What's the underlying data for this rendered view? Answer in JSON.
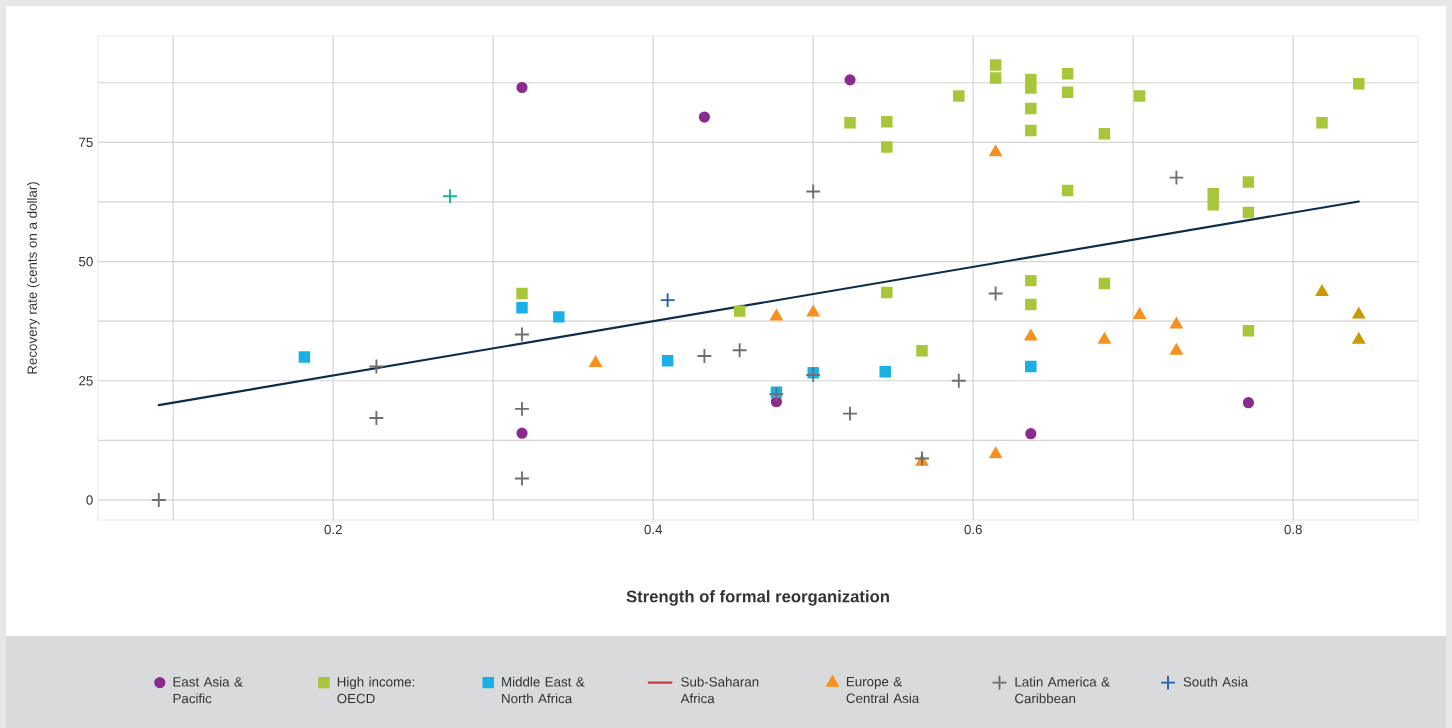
{
  "chart_data": {
    "type": "scatter",
    "xlabel": "Strength of formal reorganization",
    "ylabel": "Recovery rate (cents on a dollar)",
    "xlim": [
      0.053,
      0.878
    ],
    "ylim": [
      -4.2,
      97.3
    ],
    "xticks": [
      {
        "value": 0.1,
        "label": null
      },
      0.2,
      {
        "value": 0.3,
        "label": null
      },
      0.4,
      {
        "value": 0.5,
        "label": null
      },
      0.6,
      {
        "value": 0.7,
        "label": null
      },
      0.8
    ],
    "yticks": [
      0,
      {
        "value": 12.5,
        "label": null
      },
      25,
      {
        "value": 37.5,
        "label": null
      },
      50,
      {
        "value": 62.5,
        "label": null
      },
      75,
      {
        "value": 87.5,
        "label": null
      }
    ],
    "grid": true,
    "legend": "bottom",
    "series": [
      {
        "name": "East Asia & Pacific",
        "color": "#8b2a8f",
        "marker": "circle",
        "x": [
          0.318,
          0.318,
          0.432,
          0.523,
          0.477,
          0.636,
          0.772
        ],
        "values": [
          86.5,
          14.0,
          80.3,
          88.1,
          20.6,
          13.9,
          20.4
        ]
      },
      {
        "name": "High income: OECD",
        "color": "#a8c639",
        "marker": "square",
        "x": [
          0.318,
          0.454,
          0.523,
          0.546,
          0.546,
          0.546,
          0.568,
          0.591,
          0.614,
          0.614,
          0.636,
          0.636,
          0.636,
          0.636,
          0.636,
          0.636,
          0.659,
          0.659,
          0.659,
          0.682,
          0.682,
          0.704,
          0.75,
          0.75,
          0.772,
          0.772,
          0.772,
          0.818,
          0.841
        ],
        "values": [
          43.3,
          39.6,
          79.1,
          79.3,
          74.0,
          43.5,
          31.3,
          84.7,
          91.2,
          88.5,
          88.2,
          86.4,
          82.1,
          77.5,
          46.0,
          41.0,
          89.4,
          85.5,
          64.9,
          76.8,
          45.4,
          84.7,
          64.2,
          61.9,
          66.7,
          60.3,
          35.5,
          79.1,
          87.3
        ]
      },
      {
        "name": "Middle East & North Africa",
        "color": "#1ab0e6",
        "marker": "square",
        "x": [
          0.182,
          0.318,
          0.341,
          0.409,
          0.477,
          0.5,
          0.545,
          0.636
        ],
        "values": [
          30.0,
          40.3,
          38.4,
          29.2,
          22.6,
          26.7,
          26.9,
          28.0
        ]
      },
      {
        "name": "Sub-Saharan Africa",
        "type": "line",
        "color": "#d0393f"
      },
      {
        "name": "Europe & Central Asia",
        "color": "#f7901e",
        "marker": "triangle",
        "x": [
          0.364,
          0.477,
          0.5,
          0.568,
          0.614,
          0.614,
          0.636,
          0.682,
          0.704,
          0.727,
          0.727
        ],
        "values": [
          28.7,
          38.5,
          39.3,
          8.0,
          72.9,
          9.6,
          34.3,
          33.6,
          38.8,
          36.8,
          31.3
        ]
      },
      {
        "name": "Latin America & Caribbean",
        "color": "#6d6e71",
        "marker": "cross",
        "x": [
          0.091,
          0.227,
          0.227,
          0.318,
          0.318,
          0.318,
          0.432,
          0.454,
          0.477,
          0.5,
          0.5,
          0.523,
          0.568,
          0.591,
          0.614,
          0.727
        ],
        "values": [
          0.0,
          28.0,
          17.2,
          34.7,
          19.1,
          4.5,
          30.2,
          31.4,
          22.2,
          64.7,
          26.2,
          18.1,
          8.7,
          25.0,
          43.3,
          67.6
        ]
      },
      {
        "name": "South Asia",
        "color": "#2a5da8",
        "marker": "cross",
        "x": [
          0.409
        ],
        "values": [
          41.9
        ]
      },
      {
        "color": "#1ab394",
        "marker": "cross",
        "x": [
          0.273
        ],
        "values": [
          63.7
        ]
      },
      {
        "color": "#c99a06",
        "marker": "triangle",
        "x": [
          0.818,
          0.841,
          0.841
        ],
        "values": [
          43.6,
          38.9,
          33.6
        ]
      },
      {
        "type": "line",
        "color": "#0b2b4c",
        "x": [
          0.091,
          0.841
        ],
        "values": [
          19.9,
          62.6
        ]
      }
    ]
  }
}
